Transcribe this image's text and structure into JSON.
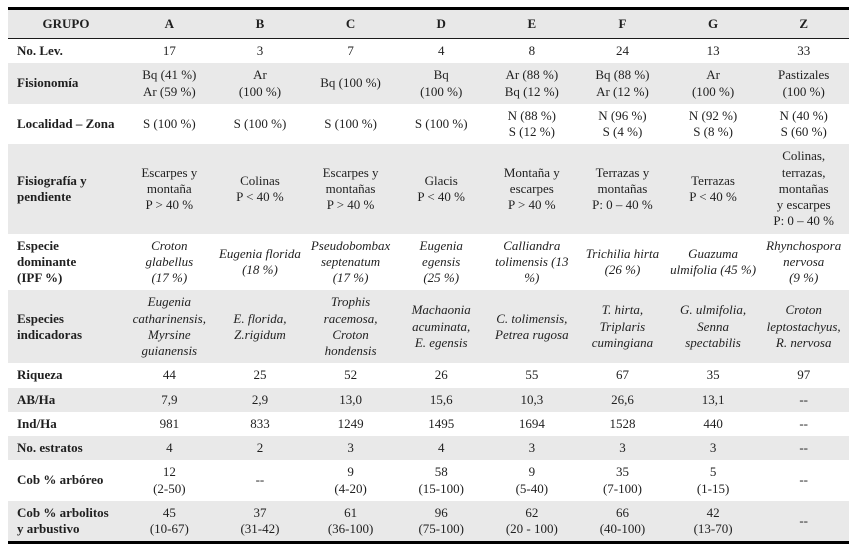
{
  "table": {
    "group_header": "GRUPO",
    "columns": [
      "A",
      "B",
      "C",
      "D",
      "E",
      "F",
      "G",
      "Z"
    ],
    "rows": [
      {
        "label": "No. Lev.",
        "italic": false,
        "values": [
          "17",
          "3",
          "7",
          "4",
          "8",
          "24",
          "13",
          "33"
        ]
      },
      {
        "label": "Fisionomía",
        "italic": false,
        "values": [
          "Bq (41 %)\nAr (59 %)",
          "Ar\n(100 %)",
          "Bq (100 %)",
          "Bq\n(100 %)",
          "Ar (88 %)\nBq (12 %)",
          "Bq (88 %)\nAr (12 %)",
          "Ar\n(100 %)",
          "Pastizales\n(100 %)"
        ]
      },
      {
        "label": "Localidad – Zona",
        "italic": false,
        "values": [
          "S (100 %)",
          "S (100 %)",
          "S (100 %)",
          "S (100 %)",
          "N (88 %)\nS (12 %)",
          "N (96 %)\nS (4 %)",
          "N (92 %)\nS (8 %)",
          "N (40 %)\nS (60 %)"
        ]
      },
      {
        "label": "Fisiografía y\npendiente",
        "italic": false,
        "values": [
          "Escarpes y\nmontaña\nP > 40 %",
          "Colinas\nP < 40 %",
          "Escarpes y\nmontañas\nP > 40 %",
          "Glacis\nP < 40 %",
          "Montaña y\nescarpes\nP > 40 %",
          "Terrazas y\nmontañas\nP: 0 – 40 %",
          "Terrazas\nP < 40 %",
          "Colinas,\nterrazas, montañas\ny escarpes\nP: 0 – 40 %"
        ]
      },
      {
        "label": "Especie\ndominante\n(IPF %)",
        "italic": true,
        "values": [
          "Croton\nglabellus\n(17 %)",
          "Eugenia florida\n(18 %)",
          "Pseudobombax\nseptenatum\n(17 %)",
          "Eugenia\negensis\n(25 %)",
          "Calliandra\ntolimensis (13 %)",
          "Trichilia hirta\n(26 %)",
          "Guazuma\nulmifolia (45 %)",
          "Rhynchospora\nnervosa\n(9 %)"
        ]
      },
      {
        "label": "Especies\nindicadoras",
        "italic": true,
        "values": [
          "Eugenia\ncatharinensis,\nMyrsine\nguianensis",
          "E. florida,\nZ.rigidum",
          "Trophis racemosa,\nCroton hondensis",
          "Machaonia\nacuminata,\nE. egensis",
          "C. tolimensis,\nPetrea rugosa",
          "T. hirta,\nTriplaris\ncumingiana",
          "G. ulmifolia,\nSenna\nspectabilis",
          "Croton\nleptostachyus,\nR. nervosa"
        ]
      },
      {
        "label": "Riqueza",
        "italic": false,
        "values": [
          "44",
          "25",
          "52",
          "26",
          "55",
          "67",
          "35",
          "97"
        ]
      },
      {
        "label": "AB/Ha",
        "italic": false,
        "values": [
          "7,9",
          "2,9",
          "13,0",
          "15,6",
          "10,3",
          "26,6",
          "13,1",
          "--"
        ]
      },
      {
        "label": "Ind/Ha",
        "italic": false,
        "values": [
          "981",
          "833",
          "1249",
          "1495",
          "1694",
          "1528",
          "440",
          "--"
        ]
      },
      {
        "label": "No. estratos",
        "italic": false,
        "values": [
          "4",
          "2",
          "3",
          "4",
          "3",
          "3",
          "3",
          "--"
        ]
      },
      {
        "label": "Cob % arbóreo",
        "italic": false,
        "values": [
          "12\n(2-50)",
          "--",
          "9\n(4-20)",
          "58\n(15-100)",
          "9\n(5-40)",
          "35\n(7-100)",
          "5\n(1-15)",
          "--"
        ]
      },
      {
        "label": "Cob % arbolitos\ny arbustivo",
        "italic": false,
        "values": [
          "45\n(10-67)",
          "37\n(31-42)",
          "61\n(36-100)",
          "96\n(75-100)",
          "62\n(20 - 100)",
          "66\n(40-100)",
          "42\n(13-70)",
          "--"
        ]
      }
    ],
    "colors": {
      "header_bg": "#e8e8e8",
      "stripe_bg": "#e9e9e9",
      "border": "#000000",
      "text": "#1f1f1f"
    }
  }
}
